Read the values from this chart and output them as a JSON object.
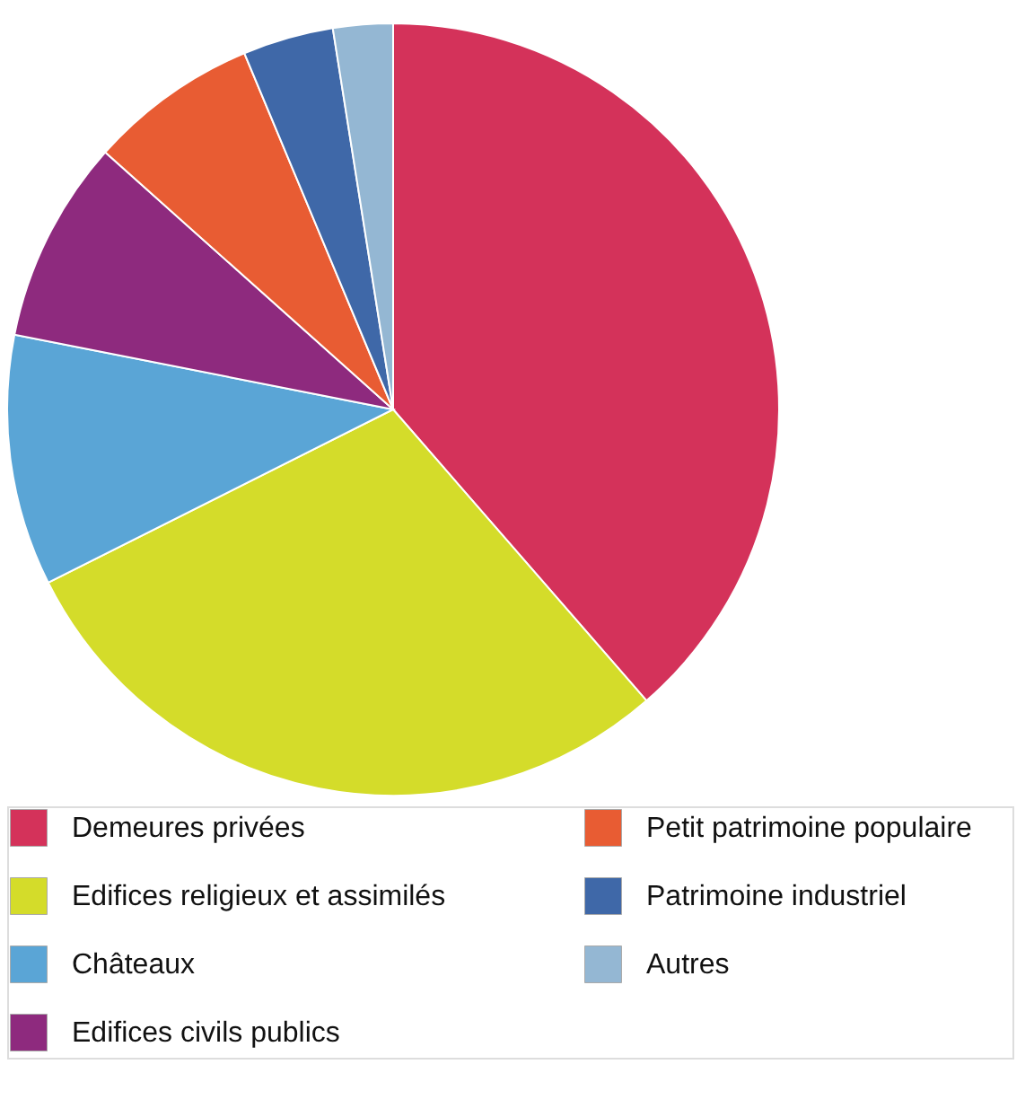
{
  "chart_data": {
    "type": "pie",
    "categories": [
      "Demeures privées",
      "Edifices religieux et assimilés",
      "Châteaux",
      "Edifices civils publics",
      "Petit patrimoine populaire",
      "Patrimoine industriel",
      "Autres"
    ],
    "values": [
      38.6,
      29.0,
      10.5,
      8.5,
      7.1,
      3.8,
      2.5
    ],
    "colors": [
      "#d4325a",
      "#d4dc2a",
      "#5aa5d6",
      "#8e2a7e",
      "#e85c33",
      "#3f68a8",
      "#94b7d3"
    ],
    "legend": "bottom"
  }
}
